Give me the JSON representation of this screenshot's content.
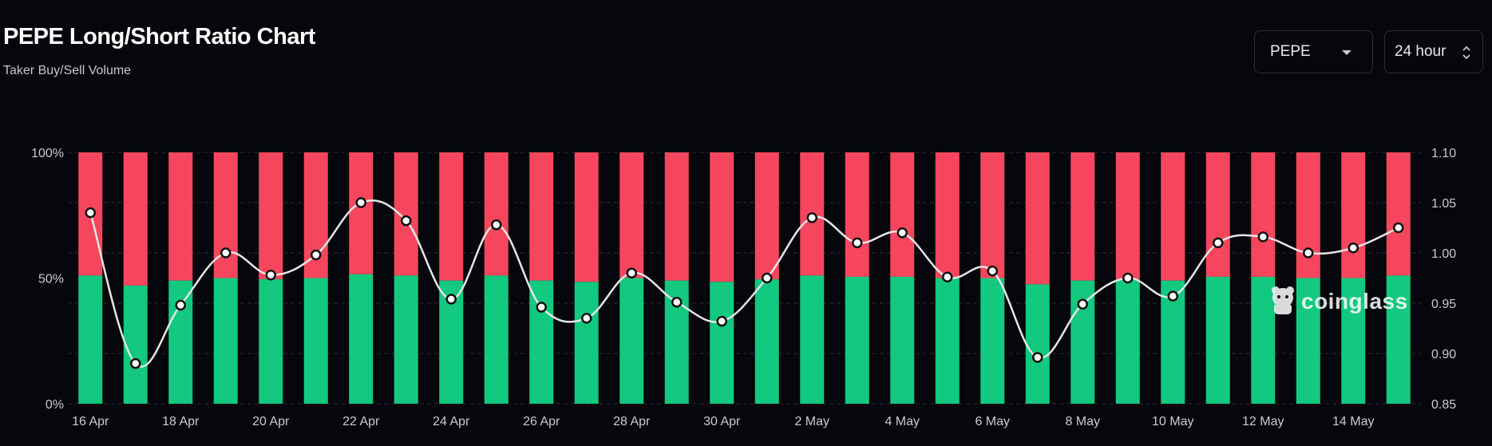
{
  "header": {
    "title": "PEPE Long/Short Ratio Chart",
    "subtitle": "Taker Buy/Sell Volume"
  },
  "controls": {
    "coin_select": "PEPE",
    "period_select": "24 hour"
  },
  "watermark": {
    "text": "coinglass",
    "icon": "coinglass-logo-icon"
  },
  "colors": {
    "long": "#12c97f",
    "short": "#f6465d",
    "line": "#e6e6e6",
    "background": "#05070c"
  },
  "chart_data": {
    "type": "bar",
    "title": "PEPE Long/Short Ratio Chart",
    "subtitle": "Taker Buy/Sell Volume",
    "categories": [
      "16 Apr",
      "17 Apr",
      "18 Apr",
      "19 Apr",
      "20 Apr",
      "21 Apr",
      "22 Apr",
      "23 Apr",
      "24 Apr",
      "25 Apr",
      "26 Apr",
      "27 Apr",
      "28 Apr",
      "29 Apr",
      "30 Apr",
      "1 May",
      "2 May",
      "3 May",
      "4 May",
      "5 May",
      "6 May",
      "7 May",
      "8 May",
      "9 May",
      "10 May",
      "11 May",
      "12 May",
      "13 May",
      "14 May",
      "15 May"
    ],
    "x_tick_labels": [
      "16 Apr",
      "18 Apr",
      "20 Apr",
      "22 Apr",
      "24 Apr",
      "26 Apr",
      "28 Apr",
      "30 Apr",
      "2 May",
      "4 May",
      "6 May",
      "8 May",
      "10 May",
      "12 May",
      "14 May"
    ],
    "stacked": true,
    "series": [
      {
        "name": "Long %",
        "axis": "left",
        "values": [
          51,
          47,
          49,
          50,
          49.5,
          50,
          51.5,
          51,
          49,
          51,
          49,
          48.5,
          50,
          49,
          48.5,
          49.5,
          51,
          50.5,
          50.5,
          50,
          50,
          47.5,
          49,
          49.5,
          49,
          50.5,
          50.5,
          50,
          50,
          51
        ]
      },
      {
        "name": "Short %",
        "axis": "left",
        "values": [
          49,
          53,
          51,
          50,
          50.5,
          50,
          48.5,
          49,
          51,
          49,
          51,
          51.5,
          50,
          51,
          51.5,
          50.5,
          49,
          49.5,
          49.5,
          50,
          50,
          52.5,
          51,
          50.5,
          51,
          49.5,
          49.5,
          50,
          50,
          49
        ]
      },
      {
        "name": "Long/Short Ratio",
        "type": "line",
        "axis": "right",
        "values": [
          1.04,
          0.89,
          0.948,
          1.0,
          0.978,
          0.998,
          1.05,
          1.032,
          0.954,
          1.028,
          0.946,
          0.935,
          0.98,
          0.951,
          0.932,
          0.975,
          1.035,
          1.01,
          1.02,
          0.976,
          0.982,
          0.896,
          0.949,
          0.975,
          0.957,
          1.01,
          1.016,
          1.0,
          1.005,
          1.025
        ]
      }
    ],
    "y_left": {
      "ticks": [
        "0%",
        "50%",
        "100%"
      ],
      "ylim": [
        0,
        100
      ]
    },
    "y_right": {
      "ticks": [
        "0.85",
        "0.90",
        "0.95",
        "1.00",
        "1.05",
        "1.10"
      ],
      "ylim": [
        0.85,
        1.1
      ]
    },
    "grid": true,
    "legend": "none"
  }
}
